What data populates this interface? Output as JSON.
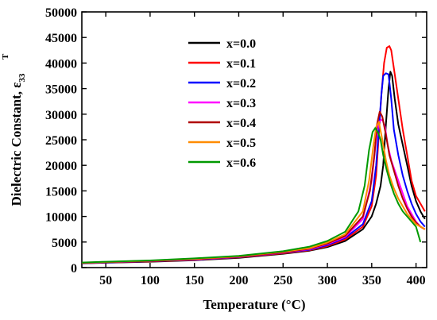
{
  "chart_data": {
    "type": "line",
    "xlabel": "Temperature (°C)",
    "ylabel": "Dielectric Constant, ε",
    "ylabel_superscript": "T",
    "ylabel_subscript": "33",
    "xlim": [
      23,
      412
    ],
    "ylim": [
      0,
      50000
    ],
    "xticks": [
      50,
      100,
      150,
      200,
      250,
      300,
      350,
      400
    ],
    "yticks": [
      0,
      5000,
      10000,
      15000,
      20000,
      25000,
      30000,
      35000,
      40000,
      45000,
      50000
    ],
    "grid": false,
    "legend_position": "upper-center",
    "series": [
      {
        "name": "x=0.0",
        "color": "#000000",
        "x": [
          23,
          50,
          100,
          150,
          200,
          250,
          280,
          300,
          320,
          340,
          350,
          355,
          360,
          363,
          366,
          369,
          371,
          373,
          376,
          380,
          385,
          390,
          395,
          400,
          405,
          410
        ],
        "y": [
          800,
          950,
          1150,
          1450,
          1900,
          2700,
          3300,
          4000,
          5200,
          7500,
          10000,
          12500,
          16000,
          20000,
          28000,
          35000,
          38300,
          37500,
          33000,
          28000,
          24000,
          20000,
          16000,
          13000,
          11000,
          9500
        ]
      },
      {
        "name": "x=0.1",
        "color": "#ff0000",
        "x": [
          23,
          50,
          100,
          150,
          200,
          250,
          280,
          300,
          320,
          340,
          350,
          355,
          358,
          361,
          364,
          367,
          370,
          372,
          375,
          380,
          385,
          390,
          395,
          400,
          405,
          410
        ],
        "y": [
          850,
          1000,
          1200,
          1500,
          2000,
          2800,
          3400,
          4200,
          5500,
          8000,
          12000,
          18000,
          26000,
          34000,
          40000,
          43000,
          43300,
          42500,
          39000,
          33000,
          27000,
          22000,
          17000,
          14000,
          12500,
          11000
        ]
      },
      {
        "name": "x=0.2",
        "color": "#0000ff",
        "x": [
          23,
          50,
          100,
          150,
          200,
          250,
          280,
          300,
          320,
          340,
          350,
          355,
          358,
          361,
          363,
          366,
          369,
          372,
          375,
          380,
          385,
          390,
          395,
          400,
          405,
          410
        ],
        "y": [
          850,
          1000,
          1250,
          1550,
          2050,
          2900,
          3500,
          4400,
          5800,
          8500,
          13000,
          20000,
          27000,
          34000,
          37500,
          38000,
          37800,
          33000,
          27000,
          22000,
          18000,
          15000,
          12500,
          10500,
          9000,
          8000
        ]
      },
      {
        "name": "x=0.3",
        "color": "#ff00ff",
        "x": [
          23,
          50,
          100,
          150,
          200,
          250,
          280,
          300,
          320,
          340,
          350,
          355,
          358,
          362,
          365,
          368,
          372,
          376,
          380,
          385,
          390,
          395,
          400,
          405,
          410
        ],
        "y": [
          900,
          1050,
          1300,
          1600,
          2100,
          2950,
          3600,
          4600,
          6000,
          9500,
          17000,
          25000,
          28500,
          29000,
          27500,
          24000,
          21000,
          19000,
          17000,
          14500,
          12000,
          10500,
          9000,
          8000,
          7500
        ]
      },
      {
        "name": "x=0.4",
        "color": "#b00000",
        "x": [
          23,
          50,
          100,
          150,
          200,
          250,
          280,
          300,
          320,
          340,
          348,
          353,
          356,
          359,
          362,
          366,
          370,
          375,
          380,
          385,
          390,
          395,
          400,
          405,
          410
        ],
        "y": [
          900,
          1050,
          1300,
          1650,
          2150,
          3000,
          3700,
          4700,
          6200,
          10000,
          15000,
          22000,
          28000,
          30500,
          29500,
          26000,
          22000,
          19000,
          16000,
          13500,
          11500,
          10000,
          8800,
          8000,
          7500
        ]
      },
      {
        "name": "x=0.5",
        "color": "#ff8c00",
        "x": [
          23,
          50,
          100,
          150,
          200,
          250,
          280,
          300,
          320,
          340,
          347,
          352,
          355,
          358,
          362,
          366,
          370,
          375,
          380,
          385,
          390,
          395,
          400,
          405,
          410
        ],
        "y": [
          950,
          1100,
          1350,
          1700,
          2200,
          3100,
          3800,
          4900,
          6500,
          11000,
          17000,
          24000,
          27500,
          28500,
          25000,
          21000,
          18000,
          15500,
          13500,
          12000,
          10500,
          9500,
          8500,
          8000,
          7500
        ]
      },
      {
        "name": "x=0.6",
        "color": "#009900",
        "x": [
          23,
          50,
          100,
          150,
          200,
          250,
          280,
          300,
          320,
          335,
          342,
          347,
          351,
          354,
          357,
          360,
          363,
          367,
          371,
          375,
          380,
          385,
          390,
          395,
          400,
          405
        ],
        "y": [
          1000,
          1150,
          1400,
          1800,
          2300,
          3200,
          4100,
          5200,
          7000,
          11000,
          16000,
          23000,
          26500,
          27300,
          26500,
          25000,
          22000,
          19000,
          16500,
          14500,
          12500,
          11000,
          10000,
          9000,
          8000,
          5000
        ]
      }
    ]
  }
}
